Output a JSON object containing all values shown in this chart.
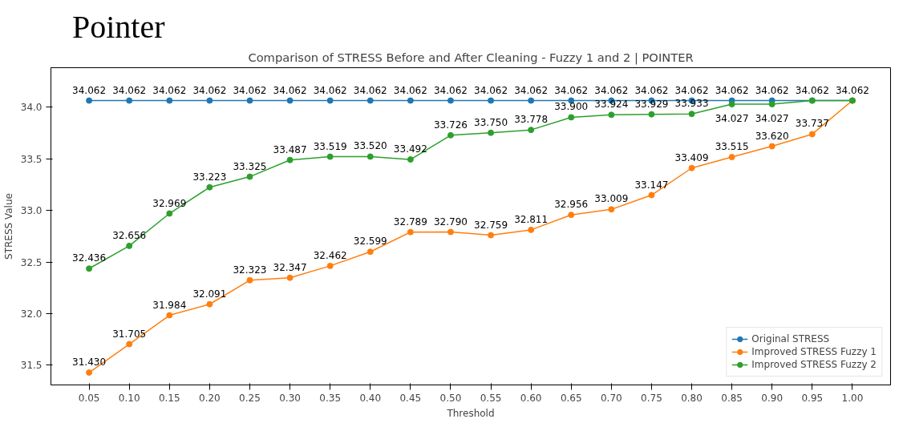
{
  "chart_data": {
    "type": "line",
    "title": "Pointer",
    "subtitle": "Comparison of STRESS Before and After Cleaning - Fuzzy 1 and 2 | POINTER",
    "xlabel": "Threshold",
    "ylabel": "STRESS Value",
    "x": [
      0.05,
      0.1,
      0.15,
      0.2,
      0.25,
      0.3,
      0.35,
      0.4,
      0.45,
      0.5,
      0.55,
      0.6,
      0.65,
      0.7,
      0.75,
      0.8,
      0.85,
      0.9,
      0.95,
      1.0
    ],
    "series": [
      {
        "name": "Original STRESS",
        "color": "#1f77b4",
        "values": [
          34.062,
          34.062,
          34.062,
          34.062,
          34.062,
          34.062,
          34.062,
          34.062,
          34.062,
          34.062,
          34.062,
          34.062,
          34.062,
          34.062,
          34.062,
          34.062,
          34.062,
          34.062,
          34.062,
          34.062
        ],
        "value_labels": [
          "34.062",
          "34.062",
          "34.062",
          "34.062",
          "34.062",
          "34.062",
          "34.062",
          "34.062",
          "34.062",
          "34.062",
          "34.062",
          "34.062",
          "34.062",
          "34.062",
          "34.062",
          "34.062",
          "34.062",
          "34.062",
          "34.062",
          "34.062"
        ]
      },
      {
        "name": "Improved STRESS Fuzzy 1",
        "color": "#ff7f0e",
        "values": [
          31.43,
          31.705,
          31.984,
          32.091,
          32.323,
          32.347,
          32.462,
          32.599,
          32.789,
          32.79,
          32.759,
          32.811,
          32.956,
          33.009,
          33.147,
          33.409,
          33.515,
          33.62,
          33.737,
          34.062
        ],
        "value_labels": [
          "31.430",
          "31.705",
          "31.984",
          "32.091",
          "32.323",
          "32.347",
          "32.462",
          "32.599",
          "32.789",
          "32.790",
          "32.759",
          "32.811",
          "32.956",
          "33.009",
          "33.147",
          "33.409",
          "33.515",
          "33.620",
          "33.737",
          null
        ]
      },
      {
        "name": "Improved STRESS Fuzzy 2",
        "color": "#2ca02c",
        "values": [
          32.436,
          32.656,
          32.969,
          33.223,
          33.325,
          33.487,
          33.519,
          33.52,
          33.492,
          33.726,
          33.75,
          33.778,
          33.9,
          33.924,
          33.929,
          33.933,
          34.027,
          34.027,
          34.062,
          34.062
        ],
        "value_labels": [
          "32.436",
          "32.656",
          "32.969",
          "33.223",
          "33.325",
          "33.487",
          "33.519",
          "33.520",
          "33.492",
          "33.726",
          "33.750",
          "33.778",
          "33.900",
          "33.924",
          "33.929",
          "33.933",
          "34.027",
          "34.027",
          null,
          null
        ]
      }
    ],
    "xlim": [
      0.0025,
      1.0475
    ],
    "ylim": [
      31.31,
      34.38
    ],
    "xticks": [
      {
        "value": 0.05,
        "label": "0.05"
      },
      {
        "value": 0.1,
        "label": "0.10"
      },
      {
        "value": 0.15,
        "label": "0.15"
      },
      {
        "value": 0.2,
        "label": "0.20"
      },
      {
        "value": 0.25,
        "label": "0.25"
      },
      {
        "value": 0.3,
        "label": "0.30"
      },
      {
        "value": 0.35,
        "label": "0.35"
      },
      {
        "value": 0.4,
        "label": "0.40"
      },
      {
        "value": 0.45,
        "label": "0.45"
      },
      {
        "value": 0.5,
        "label": "0.50"
      },
      {
        "value": 0.55,
        "label": "0.55"
      },
      {
        "value": 0.6,
        "label": "0.60"
      },
      {
        "value": 0.65,
        "label": "0.65"
      },
      {
        "value": 0.7,
        "label": "0.70"
      },
      {
        "value": 0.75,
        "label": "0.75"
      },
      {
        "value": 0.8,
        "label": "0.80"
      },
      {
        "value": 0.85,
        "label": "0.85"
      },
      {
        "value": 0.9,
        "label": "0.90"
      },
      {
        "value": 0.95,
        "label": "0.95"
      },
      {
        "value": 1.0,
        "label": "1.00"
      }
    ],
    "yticks": [
      {
        "value": 31.5,
        "label": "31.5"
      },
      {
        "value": 32.0,
        "label": "32.0"
      },
      {
        "value": 32.5,
        "label": "32.5"
      },
      {
        "value": 33.0,
        "label": "33.0"
      },
      {
        "value": 33.5,
        "label": "33.5"
      },
      {
        "value": 34.0,
        "label": "34.0"
      }
    ],
    "marker": "circle",
    "line_style": "solid",
    "grid": false,
    "legend": "bottom right"
  }
}
